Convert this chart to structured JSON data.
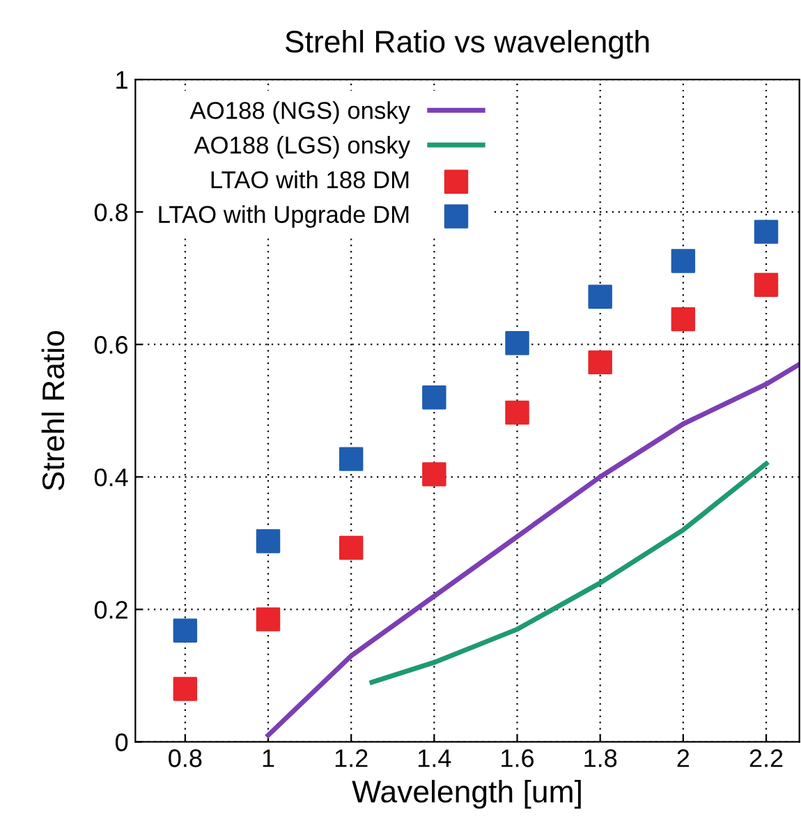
{
  "chart_data": {
    "type": "line",
    "title": "Strehl Ratio vs wavelength",
    "xlabel": "Wavelength [um]",
    "ylabel": "Strehl Ratio",
    "xlim": [
      0.68,
      2.28
    ],
    "ylim": [
      0,
      1
    ],
    "xticks": [
      0.8,
      1,
      1.2,
      1.4,
      1.6,
      1.8,
      2,
      2.2
    ],
    "yticks": [
      0,
      0.2,
      0.4,
      0.6,
      0.8,
      1
    ],
    "grid": true,
    "legend": "top left",
    "series": [
      {
        "name": "AO188 (NGS) onsky",
        "color": "#7b3fb5",
        "marker": "none",
        "x": [
          1,
          1.2,
          1.4,
          1.6,
          1.8,
          2,
          2.2,
          2.28
        ],
        "values": [
          0.01,
          0.13,
          0.22,
          0.31,
          0.4,
          0.48,
          0.54,
          0.57
        ]
      },
      {
        "name": "AO188 (LGS) onsky",
        "color": "#1f9a72",
        "marker": "none",
        "x": [
          1.25,
          1.4,
          1.6,
          1.8,
          2,
          2.2
        ],
        "values": [
          0.09,
          0.12,
          0.17,
          0.24,
          0.32,
          0.42
        ]
      },
      {
        "name": "LTAO with 188 DM",
        "type": "scatter",
        "color": "#e8262b",
        "marker": "square",
        "x": [
          0.8,
          1,
          1.2,
          1.4,
          1.6,
          1.8,
          2,
          2.2
        ],
        "values": [
          0.08,
          0.185,
          0.293,
          0.404,
          0.497,
          0.573,
          0.638,
          0.69
        ]
      },
      {
        "name": "LTAO with Upgrade DM",
        "type": "scatter",
        "color": "#1f5db0",
        "marker": "square",
        "x": [
          0.8,
          1,
          1.2,
          1.4,
          1.6,
          1.8,
          2,
          2.2
        ],
        "values": [
          0.168,
          0.303,
          0.427,
          0.52,
          0.602,
          0.672,
          0.726,
          0.77
        ]
      }
    ]
  }
}
